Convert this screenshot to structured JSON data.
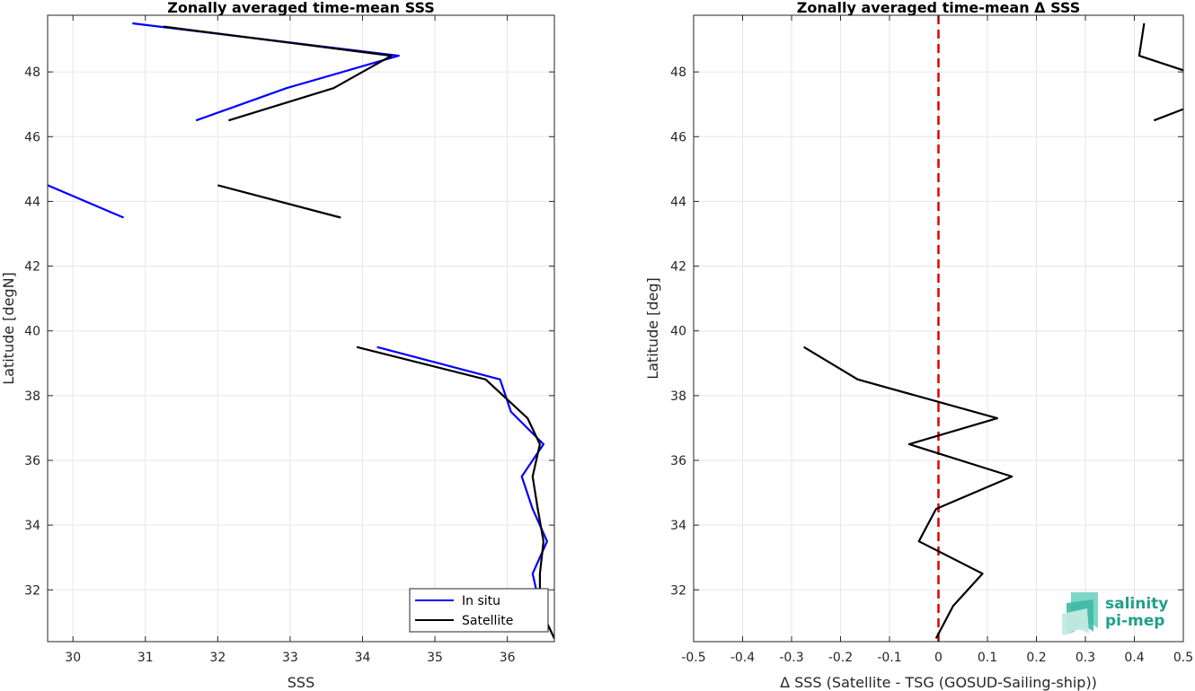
{
  "chart_data": [
    {
      "type": "line",
      "title": "Zonally averaged time-mean SSS",
      "xlabel": "SSS",
      "ylabel": "Latitude [degN]",
      "xlim": [
        29.65,
        36.65
      ],
      "ylim": [
        30.4,
        49.75
      ],
      "xticks": [
        30,
        31,
        32,
        33,
        34,
        35,
        36
      ],
      "yticks": [
        32,
        34,
        36,
        38,
        40,
        42,
        44,
        46,
        48
      ],
      "grid": true,
      "legend": "bottom-right",
      "series": [
        {
          "name": "In situ",
          "color": "#0000ff",
          "segments": [
            [
              [
                30.82,
                49.5
              ],
              [
                34.5,
                48.5
              ],
              [
                32.95,
                47.5
              ],
              [
                31.7,
                46.5
              ]
            ],
            [
              [
                29.65,
                44.5
              ],
              [
                30.7,
                43.5
              ]
            ],
            [
              [
                34.2,
                39.5
              ],
              [
                35.9,
                38.5
              ],
              [
                36.05,
                37.5
              ],
              [
                36.5,
                36.5
              ],
              [
                36.2,
                35.5
              ],
              [
                36.35,
                34.5
              ],
              [
                36.55,
                33.5
              ],
              [
                36.35,
                32.5
              ],
              [
                36.45,
                31.5
              ],
              [
                36.5,
                31.2
              ],
              [
                36.65,
                30.5
              ]
            ]
          ]
        },
        {
          "name": "Satellite",
          "color": "#000000",
          "segments": [
            [
              [
                31.25,
                49.4
              ],
              [
                34.4,
                48.5
              ],
              [
                33.6,
                47.5
              ],
              [
                32.15,
                46.5
              ]
            ],
            [
              [
                32.0,
                44.5
              ],
              [
                33.7,
                43.5
              ]
            ],
            [
              [
                33.92,
                39.5
              ],
              [
                35.7,
                38.5
              ],
              [
                36.28,
                37.3
              ],
              [
                36.45,
                36.5
              ],
              [
                36.35,
                35.5
              ],
              [
                36.42,
                34.5
              ],
              [
                36.5,
                33.5
              ],
              [
                36.45,
                32.5
              ],
              [
                36.45,
                31.5
              ],
              [
                36.5,
                31.2
              ],
              [
                36.65,
                30.5
              ]
            ]
          ]
        }
      ]
    },
    {
      "type": "line",
      "title": "Zonally averaged time-mean Δ SSS",
      "xlabel": "Δ SSS (Satellite - TSG (GOSUD-Sailing-ship))",
      "ylabel": "Latitude [deg]",
      "xlim": [
        -0.5,
        0.5
      ],
      "ylim": [
        30.4,
        49.75
      ],
      "xticks": [
        -0.5,
        -0.4,
        -0.3,
        -0.2,
        -0.1,
        0,
        0.1,
        0.2,
        0.3,
        0.4,
        0.5
      ],
      "yticks": [
        32,
        34,
        36,
        38,
        40,
        42,
        44,
        46,
        48
      ],
      "grid": true,
      "zero_line": {
        "x": 0,
        "color": "#e00000",
        "style": "dashed"
      },
      "series": [
        {
          "color": "#000000",
          "segments": [
            [
              [
                0.42,
                49.5
              ],
              [
                0.41,
                48.5
              ],
              [
                0.5,
                48.05
              ]
            ],
            [
              [
                0.5,
                46.85
              ],
              [
                0.44,
                46.5
              ]
            ],
            [
              [
                -0.275,
                39.5
              ],
              [
                -0.165,
                38.5
              ],
              [
                0.12,
                37.3
              ],
              [
                -0.06,
                36.5
              ],
              [
                0.15,
                35.5
              ],
              [
                -0.005,
                34.5
              ],
              [
                -0.04,
                33.5
              ],
              [
                0.09,
                32.5
              ],
              [
                0.03,
                31.5
              ],
              [
                -0.005,
                30.5
              ]
            ]
          ]
        }
      ]
    }
  ],
  "logo": {
    "line1": "salinity",
    "line2": "pi-mep",
    "color": "#1f9f8a"
  }
}
